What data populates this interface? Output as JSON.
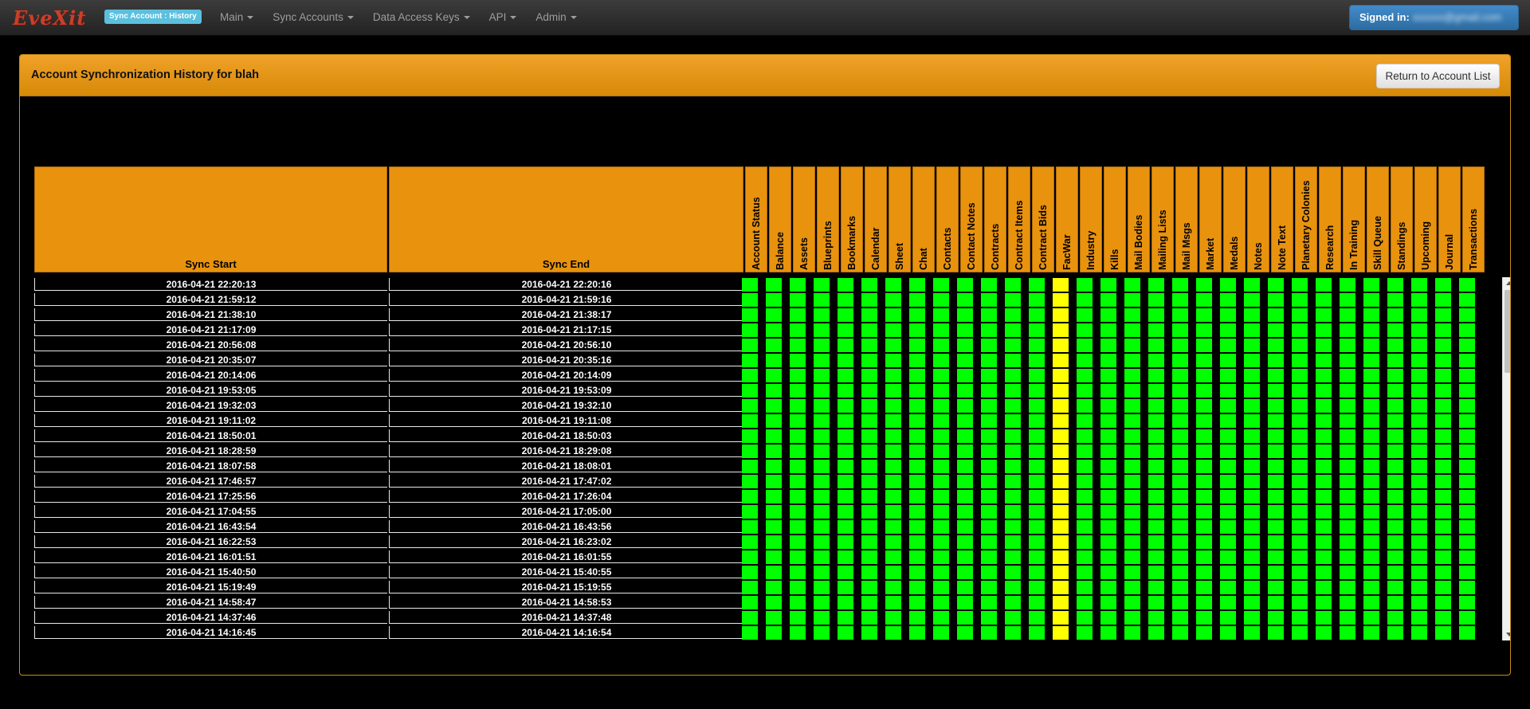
{
  "navbar": {
    "brand": "EveXit",
    "context_badge": "Sync Account : History",
    "menus": [
      "Main",
      "Sync Accounts",
      "Data Access Keys",
      "API",
      "Admin"
    ],
    "signed_in_label": "Signed in:",
    "signed_in_email": "xxxxxx@gmail.com"
  },
  "panel": {
    "title": "Account Synchronization History for blah",
    "return_button": "Return to Account List"
  },
  "table": {
    "headers": {
      "sync_start": "Sync Start",
      "sync_end": "Sync End"
    },
    "status_columns": [
      "Account Status",
      "Balance",
      "Assets",
      "Blueprints",
      "Bookmarks",
      "Calendar",
      "Sheet",
      "Chat",
      "Contacts",
      "Contact Notes",
      "Contracts",
      "Contract Items",
      "Contract Bids",
      "FacWar",
      "Industry",
      "Kills",
      "Mail Bodies",
      "Mailing Lists",
      "Mail Msgs",
      "Market",
      "Medals",
      "Notes",
      "Note Text",
      "Planetary Colonies",
      "Research",
      "In Training",
      "Skill Queue",
      "Standings",
      "Upcoming",
      "Journal",
      "Transactions"
    ],
    "warning_column": "FacWar",
    "colors": {
      "ok": "#00ff00",
      "warning": "#ffff00",
      "header": "#e8920e"
    },
    "rows": [
      {
        "start": "2016-04-21 22:20:13",
        "end": "2016-04-21 22:20:16"
      },
      {
        "start": "2016-04-21 21:59:12",
        "end": "2016-04-21 21:59:16"
      },
      {
        "start": "2016-04-21 21:38:10",
        "end": "2016-04-21 21:38:17"
      },
      {
        "start": "2016-04-21 21:17:09",
        "end": "2016-04-21 21:17:15"
      },
      {
        "start": "2016-04-21 20:56:08",
        "end": "2016-04-21 20:56:10"
      },
      {
        "start": "2016-04-21 20:35:07",
        "end": "2016-04-21 20:35:16"
      },
      {
        "start": "2016-04-21 20:14:06",
        "end": "2016-04-21 20:14:09"
      },
      {
        "start": "2016-04-21 19:53:05",
        "end": "2016-04-21 19:53:09"
      },
      {
        "start": "2016-04-21 19:32:03",
        "end": "2016-04-21 19:32:10"
      },
      {
        "start": "2016-04-21 19:11:02",
        "end": "2016-04-21 19:11:08"
      },
      {
        "start": "2016-04-21 18:50:01",
        "end": "2016-04-21 18:50:03"
      },
      {
        "start": "2016-04-21 18:28:59",
        "end": "2016-04-21 18:29:08"
      },
      {
        "start": "2016-04-21 18:07:58",
        "end": "2016-04-21 18:08:01"
      },
      {
        "start": "2016-04-21 17:46:57",
        "end": "2016-04-21 17:47:02"
      },
      {
        "start": "2016-04-21 17:25:56",
        "end": "2016-04-21 17:26:04"
      },
      {
        "start": "2016-04-21 17:04:55",
        "end": "2016-04-21 17:05:00"
      },
      {
        "start": "2016-04-21 16:43:54",
        "end": "2016-04-21 16:43:56"
      },
      {
        "start": "2016-04-21 16:22:53",
        "end": "2016-04-21 16:23:02"
      },
      {
        "start": "2016-04-21 16:01:51",
        "end": "2016-04-21 16:01:55"
      },
      {
        "start": "2016-04-21 15:40:50",
        "end": "2016-04-21 15:40:55"
      },
      {
        "start": "2016-04-21 15:19:49",
        "end": "2016-04-21 15:19:55"
      },
      {
        "start": "2016-04-21 14:58:47",
        "end": "2016-04-21 14:58:53"
      },
      {
        "start": "2016-04-21 14:37:46",
        "end": "2016-04-21 14:37:48"
      },
      {
        "start": "2016-04-21 14:16:45",
        "end": "2016-04-21 14:16:54"
      }
    ]
  }
}
